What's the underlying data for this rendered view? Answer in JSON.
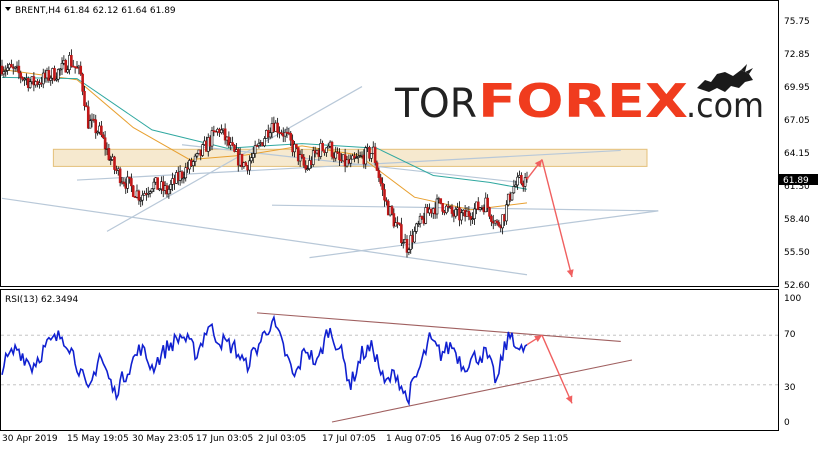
{
  "chart_info": {
    "symbol": "BRENT,H4",
    "ohlc": "61.84 62.12 61.64 61.89",
    "last_price": "61.89",
    "last_price_value": 61.89
  },
  "brand": {
    "tor": "TOR",
    "forex": "FOREX",
    "com": ".com",
    "forex_color": "#f03c1e"
  },
  "chart_data": [
    {
      "type": "candlestick",
      "title": "BRENT,H4 61.84 62.12 61.64 61.89",
      "ylim": [
        52.6,
        75.75
      ],
      "yticks": [
        "75.75",
        "72.85",
        "69.95",
        "67.05",
        "64.15",
        "61.30",
        "58.40",
        "55.50",
        "52.60"
      ],
      "xticks": [
        "30 Apr 2019",
        "15 May 19:05",
        "30 May 23:05",
        "17 Jun 03:05",
        "2 Jul 03:05",
        "17 Jul 07:05",
        "1 Aug 07:05",
        "16 Aug 07:05",
        "2 Sep 11:05"
      ],
      "close_path": [
        [
          0,
          71.8
        ],
        [
          4,
          71.2
        ],
        [
          8,
          70.3
        ],
        [
          12,
          70.8
        ],
        [
          16,
          71.5
        ],
        [
          18,
          72.4
        ],
        [
          21,
          71.0
        ],
        [
          23,
          66.9
        ],
        [
          26,
          66.0
        ],
        [
          30,
          62.8
        ],
        [
          34,
          61.3
        ],
        [
          37,
          60.4
        ],
        [
          40,
          61.5
        ],
        [
          44,
          60.8
        ],
        [
          48,
          62.4
        ],
        [
          52,
          63.6
        ],
        [
          55,
          65.1
        ],
        [
          58,
          66.3
        ],
        [
          62,
          64.0
        ],
        [
          65,
          63.1
        ],
        [
          68,
          64.4
        ],
        [
          72,
          66.9
        ],
        [
          75,
          66.0
        ],
        [
          78,
          64.5
        ],
        [
          81,
          62.7
        ],
        [
          84,
          64.3
        ],
        [
          87,
          64.9
        ],
        [
          90,
          63.4
        ],
        [
          93,
          63.2
        ],
        [
          96,
          63.8
        ],
        [
          99,
          64.3
        ],
        [
          102,
          60.1
        ],
        [
          105,
          57.9
        ],
        [
          108,
          56.0
        ],
        [
          111,
          57.7
        ],
        [
          114,
          59.2
        ],
        [
          117,
          59.8
        ],
        [
          120,
          58.8
        ],
        [
          123,
          58.6
        ],
        [
          126,
          59.2
        ],
        [
          129,
          59.8
        ],
        [
          132,
          57.8
        ],
        [
          134,
          58.8
        ],
        [
          136,
          61.1
        ],
        [
          138,
          61.6
        ],
        [
          140,
          61.89
        ]
      ],
      "series": [
        {
          "name": "MA (orange)",
          "color": "#e8a030",
          "points": [
            [
              0,
              71.5
            ],
            [
              20,
              70.6
            ],
            [
              35,
              66.4
            ],
            [
              50,
              63.6
            ],
            [
              65,
              64.0
            ],
            [
              80,
              64.8
            ],
            [
              95,
              64.0
            ],
            [
              110,
              60.3
            ],
            [
              125,
              59.2
            ],
            [
              140,
              59.8
            ]
          ]
        },
        {
          "name": "MA (teal)",
          "color": "#30a8a0",
          "points": [
            [
              0,
              70.8
            ],
            [
              20,
              70.7
            ],
            [
              40,
              66.2
            ],
            [
              60,
              64.6
            ],
            [
              80,
              65.0
            ],
            [
              100,
              64.6
            ],
            [
              115,
              62.2
            ],
            [
              130,
              61.6
            ],
            [
              140,
              61.0
            ]
          ]
        }
      ],
      "annotations": {
        "resistance_zone": [
          63.0,
          64.5
        ],
        "channel_lines": [
          [
            [
              0,
              60.2
            ],
            [
              140,
              53.5
            ]
          ],
          [
            [
              48,
              64.9
            ],
            [
              138,
              61.6
            ]
          ],
          [
            [
              28,
              57.3
            ],
            [
              96,
              70.0
            ]
          ],
          [
            [
              20,
              61.8
            ],
            [
              165,
              64.4
            ]
          ],
          [
            [
              72,
              59.6
            ],
            [
              175,
              59.1
            ]
          ],
          [
            [
              82,
              55.0
            ],
            [
              175,
              59.1
            ]
          ]
        ],
        "forecast_arrows": [
          [
            [
              140,
              61.89
            ],
            [
              144,
              63.6
            ]
          ],
          [
            [
              144,
              63.6
            ],
            [
              152,
              53.3
            ]
          ]
        ]
      },
      "arrow_color": "#f06060",
      "channel_color": "#b8c8d8"
    },
    {
      "type": "line",
      "title": "RSI(13) 62.3494",
      "ylim": [
        0,
        100
      ],
      "yticks": [
        "100",
        "70",
        "30",
        "0"
      ],
      "levels": [
        30,
        70
      ],
      "series": [
        {
          "name": "RSI(13)",
          "color": "#1020d0",
          "points": [
            [
              0,
              45
            ],
            [
              4,
              60
            ],
            [
              8,
              45
            ],
            [
              12,
              62
            ],
            [
              16,
              70
            ],
            [
              18,
              62
            ],
            [
              21,
              40
            ],
            [
              23,
              22
            ],
            [
              26,
              55
            ],
            [
              30,
              23
            ],
            [
              34,
              45
            ],
            [
              37,
              60
            ],
            [
              40,
              44
            ],
            [
              44,
              60
            ],
            [
              48,
              70
            ],
            [
              52,
              55
            ],
            [
              55,
              78
            ],
            [
              58,
              66
            ],
            [
              62,
              60
            ],
            [
              65,
              45
            ],
            [
              68,
              60
            ],
            [
              72,
              82
            ],
            [
              75,
              60
            ],
            [
              78,
              35
            ],
            [
              81,
              60
            ],
            [
              84,
              46
            ],
            [
              87,
              75
            ],
            [
              90,
              60
            ],
            [
              93,
              30
            ],
            [
              96,
              55
            ],
            [
              99,
              60
            ],
            [
              102,
              30
            ],
            [
              105,
              40
            ],
            [
              108,
              18
            ],
            [
              111,
              40
            ],
            [
              114,
              66
            ],
            [
              117,
              55
            ],
            [
              120,
              62
            ],
            [
              123,
              45
            ],
            [
              126,
              52
            ],
            [
              129,
              55
            ],
            [
              132,
              32
            ],
            [
              134,
              60
            ],
            [
              136,
              72
            ],
            [
              138,
              55
            ],
            [
              140,
              62.35
            ]
          ]
        }
      ],
      "annotations": {
        "trend_lines": [
          [
            [
              68,
              88
            ],
            [
              165,
              65
            ]
          ],
          [
            [
              88,
              0
            ],
            [
              168,
              50
            ]
          ]
        ],
        "forecast_arrows": [
          [
            [
              140,
              62.35
            ],
            [
              144,
              70
            ]
          ],
          [
            [
              144,
              70
            ],
            [
              152,
              15
            ]
          ]
        ]
      },
      "trend_color": "#a06060"
    }
  ]
}
